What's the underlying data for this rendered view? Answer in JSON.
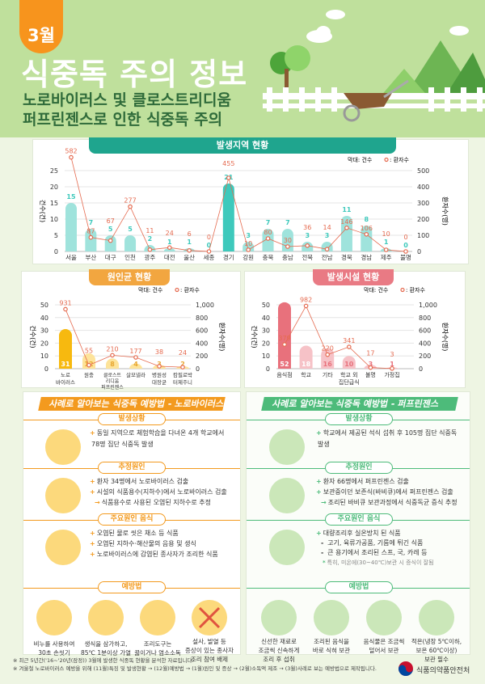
{
  "header": {
    "month": "3월",
    "title": "식중독 주의 정보",
    "subtitle_lines": [
      "노로바이러스 및 클로스트리디움",
      "퍼프린젠스로 인한 식중독 주의"
    ]
  },
  "legend": {
    "bar": "막대: 건수",
    "line": ": 환자수"
  },
  "axis": {
    "left": "건수(건)",
    "right": "환자수(명)"
  },
  "chart_data": [
    {
      "type": "bar",
      "title": "발생지역 현황",
      "xlabel": "",
      "ylabel": "건수(건)",
      "y2label": "환자수(명)",
      "ylim": [
        0,
        25
      ],
      "y2lim": [
        0,
        500
      ],
      "yticks": [
        0,
        5,
        10,
        15,
        20,
        25
      ],
      "y2ticks": [
        0,
        100,
        200,
        300,
        400,
        500
      ],
      "legend": "top-right",
      "grid": true,
      "categories": [
        "서울",
        "부산",
        "대구",
        "인천",
        "광주",
        "대전",
        "울산",
        "세종",
        "경기",
        "강원",
        "충북",
        "충남",
        "전북",
        "전남",
        "경북",
        "경남",
        "제주",
        "불명"
      ],
      "series": [
        {
          "name": "건수",
          "type": "bar",
          "values": [
            15,
            7,
            5,
            5,
            2,
            1,
            1,
            0,
            21,
            3,
            7,
            7,
            3,
            3,
            11,
            8,
            1,
            0
          ]
        },
        {
          "name": "환자수",
          "type": "line",
          "values": [
            582,
            87,
            67,
            277,
            11,
            24,
            6,
            0,
            455,
            10,
            80,
            30,
            36,
            14,
            146,
            106,
            10,
            0
          ]
        }
      ],
      "colors": {
        "bar": "#9fe3dc",
        "highlight": "#3ec9bc",
        "line": "#e56a4f"
      }
    },
    {
      "type": "bar",
      "title": "원인균 현황",
      "ylabel": "건수(건)",
      "y2label": "환자수(명)",
      "ylim": [
        0,
        50
      ],
      "y2lim": [
        0,
        1000
      ],
      "yticks": [
        0,
        10,
        20,
        30,
        40,
        50
      ],
      "y2ticks": [
        "0",
        "200",
        "400",
        "600",
        "800",
        "1,000"
      ],
      "legend": "top-right",
      "grid": true,
      "categories": [
        "노로\n바이러스",
        "원충",
        "클로스트리디움\n퍼프린젠스",
        "살모넬라",
        "병원성\n대장균",
        "캄필로박\n터제주니"
      ],
      "series": [
        {
          "name": "건수",
          "type": "bar",
          "values": [
            31,
            12,
            8,
            4,
            3,
            2
          ]
        },
        {
          "name": "환자수",
          "type": "line",
          "values": [
            931,
            55,
            210,
            177,
            38,
            24
          ]
        }
      ],
      "colors": {
        "bar": "#fde39a",
        "highlight": "#f7b90f",
        "line": "#e56a4f"
      }
    },
    {
      "type": "bar",
      "title": "발생시설 현황",
      "ylabel": "건수(건)",
      "y2label": "환자수(명)",
      "ylim": [
        0,
        50
      ],
      "y2lim": [
        0,
        1000
      ],
      "yticks": [
        0,
        10,
        20,
        30,
        40,
        50
      ],
      "y2ticks": [
        "0",
        "200",
        "400",
        "600",
        "800",
        "1,000"
      ],
      "legend": "top-right",
      "grid": true,
      "categories": [
        "음식점",
        "학교",
        "기타",
        "학교 외\n집단급식",
        "불명",
        "가정집"
      ],
      "series": [
        {
          "name": "건수",
          "type": "bar",
          "values": [
            52,
            18,
            16,
            10,
            3,
            1
          ]
        },
        {
          "name": "환자수",
          "type": "line",
          "values": [
            379,
            982,
            220,
            341,
            17,
            3
          ]
        }
      ],
      "colors": {
        "bar": "#f6c2c7",
        "highlight": "#e8717c",
        "line": "#e56a4f"
      }
    }
  ],
  "cases": [
    {
      "title": "사례로 알아보는 식중독 예방법 - 노로바이러스",
      "accent": "#f39a1e",
      "circle": "#fcd97c",
      "sections": [
        {
          "label": "발생상황",
          "bullets": [
            {
              "m": "+",
              "t": "동일 지역으로 체험학습을 다녀온 4개 학교에서"
            },
            {
              "m": "",
              "t": "78명 집단 식중독 발생"
            }
          ]
        },
        {
          "label": "추정원인",
          "bullets": [
            {
              "m": "+",
              "t": "환자 34명에서 노로바이러스 검출"
            },
            {
              "m": "+",
              "t": "시설의 식품용수(지하수)에서 노로바이러스 검출"
            },
            {
              "m": "→",
              "t": "식품용수로 사용된 오염된 지하수로 추정"
            }
          ]
        },
        {
          "label": "주요원인 음식",
          "bullets": [
            {
              "m": "+",
              "t": "오염된 물로 씻은 채소 등 식품"
            },
            {
              "m": "+",
              "t": "오염된 지하수·해산물의 음용 및 생식"
            },
            {
              "m": "+",
              "t": "노로바이러스에 감염된 종사자가 조리한 식품"
            }
          ]
        }
      ],
      "prevention": {
        "label": "예방법",
        "items": [
          "비누를 사용하여\n30초 손씻기",
          "생식을 삼가하고,\n85℃ 1분이상 가열",
          "조리도구는\n끓이거나 염소소독",
          "설사, 발열 등\n증상이 있는 종사자\n조리 참여 배제"
        ],
        "icons": [
          "hand-washing-icon",
          "boiling-pot-icon",
          "utensil-sterilize-icon",
          "sick-chef-excluded-icon"
        ]
      },
      "icons": [
        "food-tray-icon",
        "water-cup-virus-icon",
        "vegetable-icon"
      ]
    },
    {
      "title": "사례로 알아보는 식중독 예방법 - 퍼프린젠스",
      "accent": "#4dbb7a",
      "circle": "#cbe7b9",
      "sections": [
        {
          "label": "발생상황",
          "bullets": [
            {
              "m": "+",
              "t": "학교에서 제공된 석식 섭취 후 105명 집단 식중독"
            },
            {
              "m": "",
              "t": "발생"
            }
          ]
        },
        {
          "label": "추정원인",
          "bullets": [
            {
              "m": "+",
              "t": "환자 66명에서 퍼프린젠스 검출"
            },
            {
              "m": "+",
              "t": "보관중이던 보존식(바비큐)에서 퍼프린젠스 검출"
            },
            {
              "m": "→",
              "t": "조리된 바비큐 보관과정에서 식중독균 증식 추정"
            }
          ]
        },
        {
          "label": "주요원인 음식",
          "bullets": [
            {
              "m": "+",
              "t": "대량조리후 실온방치 된 식품"
            },
            {
              "m": "-",
              "t": "고기, 육류가공품, 기름에 튀긴 식품"
            },
            {
              "m": "-",
              "t": "큰 용기에서 조리된 스프, 국, 카레 등"
            },
            {
              "m": "*",
              "t": "특히, 미온에(30~40℃)보관 시 증식이 잘됨"
            }
          ]
        }
      ],
      "prevention": {
        "label": "예방법",
        "items": [
          "신선한 재료로\n조금씩 신속하게\n조리 후 섭취",
          "조리된 음식을\n바로 식혀 보관",
          "음식물은 조금씩\n덜어서 보관",
          "적온(냉장 5℃이하,\n보온 60℃이상)\n보관 필수"
        ],
        "icons": [
          "fresh-ingredients-icon",
          "cooling-pot-icon",
          "portioned-food-icon",
          "thermometer-icon"
        ]
      },
      "icons": [
        "school-meal-icon",
        "meat-magnifier-icon",
        "bacteria-meat-icon"
      ]
    }
  ],
  "footer": {
    "notes": [
      "※ 최근 5년간('16~'20년(잠정)) 3월에 발생한 식중독 현황을 분석한 자료입니다.",
      "※ 겨울철 노로바이러스 예방을 위해 (11월)특징 및 발생현황 → (12월)예방법 → (1월)원인 및 증상 → (2월)소독액 제조 → (3월)사례로 보는 예방법으로 제작됩니다."
    ],
    "org": "식품의약품안전처"
  }
}
